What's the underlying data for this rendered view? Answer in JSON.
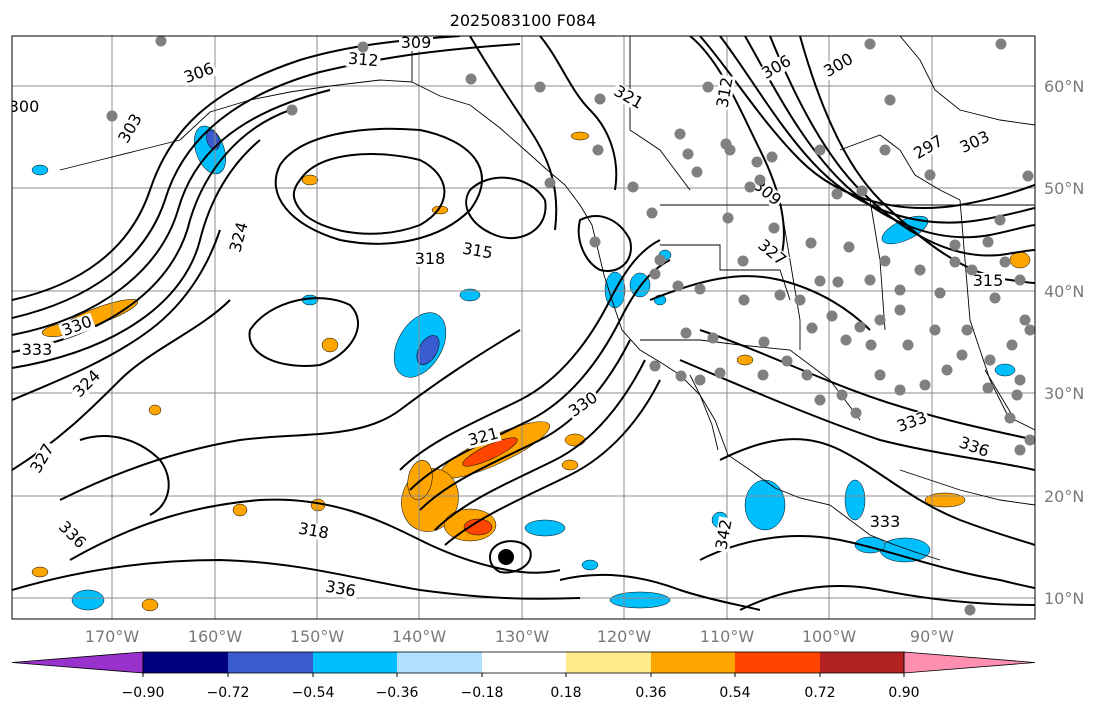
{
  "title": "2025083100 F084",
  "lon_labels": [
    "170°W",
    "160°W",
    "150°W",
    "140°W",
    "130°W",
    "120°W",
    "110°W",
    "100°W",
    "90°W"
  ],
  "lat_labels": [
    "60°N",
    "50°N",
    "40°N",
    "30°N",
    "20°N",
    "10°N"
  ],
  "colorbar": {
    "ticks": [
      "−0.90",
      "−0.72",
      "−0.54",
      "−0.36",
      "−0.18",
      "0.18",
      "0.36",
      "0.54",
      "0.72",
      "0.90"
    ],
    "under_color": "#9932cc",
    "over_color": "#ff8fb0",
    "bins": [
      "#000080",
      "#3a5bd0",
      "#00bfff",
      "#afe1ff",
      "#ffffff",
      "#ffeb8a",
      "#ffa500",
      "#ff4500",
      "#b22222"
    ]
  },
  "contour_labels": [
    "300",
    "303",
    "306",
    "309",
    "312",
    "315",
    "318",
    "321",
    "324",
    "327",
    "330",
    "333",
    "336",
    "297",
    "342"
  ],
  "colors": {
    "contour": "#000000",
    "grid": "#8c8c8c",
    "coast": "#000000",
    "station_dot": "#808080",
    "positive_shade": "#ffa500",
    "positive_core": "#ff4500",
    "negative_shade": "#00bfff",
    "negative_core": "#3a5bd0"
  }
}
